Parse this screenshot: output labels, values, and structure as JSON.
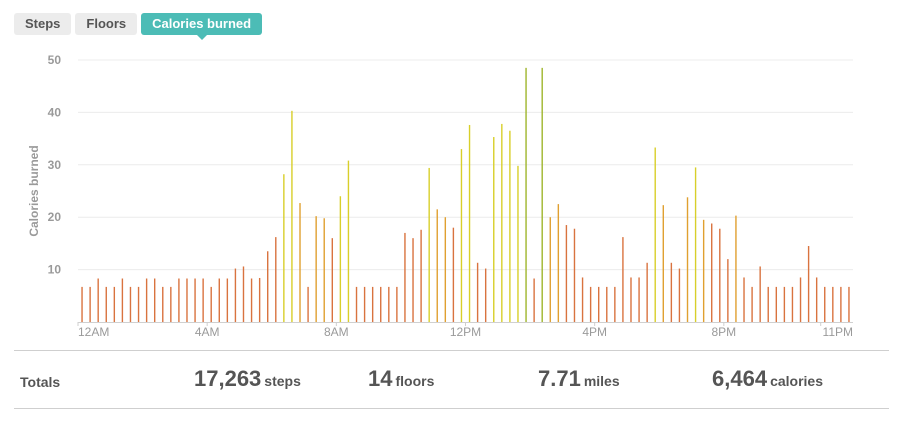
{
  "tabs": [
    {
      "label": "Steps",
      "active": false
    },
    {
      "label": "Floors",
      "active": false
    },
    {
      "label": "Calories burned",
      "active": true
    }
  ],
  "colors": {
    "accent": "#4cbcb6",
    "bar_low": "#d9733f",
    "bar_mid": "#e0a030",
    "bar_high": "#d8cf2a",
    "bar_peak": "#9fb52c",
    "grid": "#ececec"
  },
  "chart_data": {
    "type": "bar",
    "ylabel": "Calories burned",
    "ylim": [
      0,
      50
    ],
    "yticks": [
      10,
      20,
      30,
      40,
      50
    ],
    "x_tick_labels": [
      "12AM",
      "4AM",
      "8AM",
      "12PM",
      "4PM",
      "8PM",
      "11PM"
    ],
    "x_tick_hours": [
      0,
      4,
      8,
      12,
      16,
      20,
      23
    ],
    "x_start_hour": 0,
    "x_end_hour": 24,
    "baseline_value": 6.7,
    "overrides": [
      [
        0.42,
        8.3
      ],
      [
        1.13,
        8.3
      ],
      [
        2.04,
        8.3
      ],
      [
        2.34,
        8.3
      ],
      [
        3.06,
        8.3
      ],
      [
        3.26,
        8.3
      ],
      [
        3.56,
        8.3
      ],
      [
        3.87,
        8.3
      ],
      [
        4.27,
        8.3
      ],
      [
        4.47,
        8.3
      ],
      [
        4.68,
        10.2
      ],
      [
        4.93,
        10.6
      ],
      [
        5.1,
        8.5
      ],
      [
        5.3,
        8.3
      ],
      [
        5.6,
        8.4
      ],
      [
        5.79,
        13.5
      ],
      [
        5.89,
        11.3
      ],
      [
        6.0,
        16.2
      ],
      [
        6.1,
        14.7
      ],
      [
        6.19,
        20.2
      ],
      [
        6.29,
        28.2
      ],
      [
        6.39,
        32.0
      ],
      [
        6.45,
        40.3
      ],
      [
        6.55,
        36.1
      ],
      [
        6.65,
        22.7
      ],
      [
        6.75,
        20.3
      ],
      [
        6.85,
        17.8
      ],
      [
        7.14,
        20.2
      ],
      [
        7.25,
        11.3
      ],
      [
        7.55,
        19.8
      ],
      [
        7.7,
        13.3
      ],
      [
        7.8,
        16.0
      ],
      [
        7.93,
        24.0
      ],
      [
        8.0,
        24.0
      ],
      [
        8.1,
        17.6
      ],
      [
        8.3,
        30.8
      ],
      [
        10.06,
        17.0
      ],
      [
        10.2,
        12.5
      ],
      [
        10.3,
        16.0
      ],
      [
        10.45,
        14.5
      ],
      [
        10.57,
        17.6
      ],
      [
        10.67,
        29.4
      ],
      [
        10.76,
        19.8
      ],
      [
        10.87,
        21.1
      ],
      [
        10.97,
        21.5
      ],
      [
        11.06,
        19.4
      ],
      [
        11.16,
        17.4
      ],
      [
        11.26,
        20.0
      ],
      [
        11.36,
        17.1
      ],
      [
        11.46,
        18.0
      ],
      [
        11.56,
        17.6
      ],
      [
        11.66,
        18.1
      ],
      [
        11.76,
        24.0
      ],
      [
        11.86,
        33.0
      ],
      [
        11.96,
        37.6
      ],
      [
        12.06,
        18.0
      ],
      [
        12.2,
        11.3
      ],
      [
        12.45,
        10.2
      ],
      [
        12.55,
        8.3
      ],
      [
        12.66,
        12.0
      ],
      [
        12.77,
        17.6
      ],
      [
        12.87,
        35.3
      ],
      [
        12.98,
        37.8
      ],
      [
        13.08,
        19.0
      ],
      [
        13.18,
        29.3
      ],
      [
        13.3,
        36.5
      ],
      [
        13.38,
        29.8
      ],
      [
        13.5,
        18.6
      ],
      [
        13.56,
        18.9
      ],
      [
        13.62,
        10.2
      ],
      [
        13.72,
        20.0
      ],
      [
        13.82,
        48.5
      ],
      [
        13.92,
        8.3
      ],
      [
        14.18,
        21.3
      ],
      [
        14.26,
        48.5
      ],
      [
        14.36,
        31.0
      ],
      [
        14.48,
        20.0
      ],
      [
        14.58,
        18.9
      ],
      [
        14.68,
        22.5
      ],
      [
        14.78,
        21.0
      ],
      [
        14.88,
        18.5
      ],
      [
        14.98,
        17.9
      ],
      [
        15.08,
        18.0
      ],
      [
        15.18,
        17.8
      ],
      [
        15.54,
        8.5
      ],
      [
        16.68,
        16.2
      ],
      [
        17.04,
        8.5
      ],
      [
        17.36,
        8.5
      ],
      [
        17.59,
        11.3
      ],
      [
        17.74,
        33.3
      ],
      [
        17.84,
        23.5
      ],
      [
        17.94,
        22.3
      ],
      [
        18.04,
        18.0
      ],
      [
        18.24,
        11.3
      ],
      [
        18.44,
        10.2
      ],
      [
        18.64,
        13.5
      ],
      [
        18.74,
        16.5
      ],
      [
        18.84,
        23.8
      ],
      [
        18.94,
        29.5
      ],
      [
        19.04,
        20.2
      ],
      [
        19.14,
        18.7
      ],
      [
        19.24,
        19.5
      ],
      [
        19.34,
        19.0
      ],
      [
        19.44,
        17.6
      ],
      [
        19.54,
        18.8
      ],
      [
        19.64,
        14.7
      ],
      [
        19.74,
        16.5
      ],
      [
        19.84,
        17.8
      ],
      [
        19.94,
        12.0
      ],
      [
        20.14,
        20.3
      ],
      [
        20.34,
        15.0
      ],
      [
        20.59,
        8.5
      ],
      [
        20.94,
        8.3
      ],
      [
        21.1,
        10.6
      ],
      [
        22.16,
        8.5
      ],
      [
        22.56,
        14.5
      ],
      [
        22.66,
        8.5
      ]
    ]
  },
  "totals": {
    "label": "Totals",
    "steps": {
      "value": "17,263",
      "unit": "steps"
    },
    "floors": {
      "value": "14",
      "unit": "floors"
    },
    "miles": {
      "value": "7.71",
      "unit": "miles"
    },
    "calories": {
      "value": "6,464",
      "unit": "calories"
    }
  }
}
